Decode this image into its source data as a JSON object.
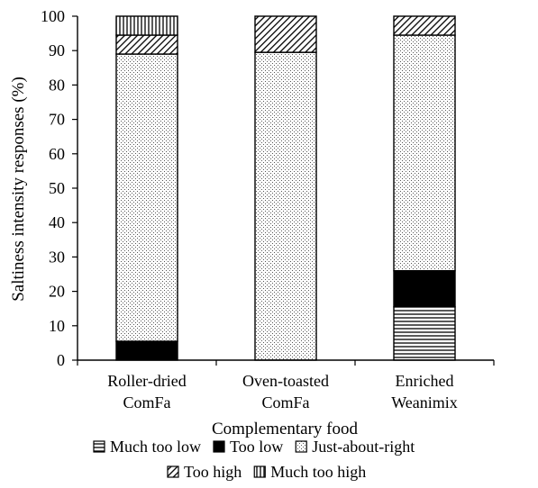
{
  "chart_data": {
    "type": "bar",
    "stacked": true,
    "categories": [
      [
        "Roller-dried",
        "ComFa"
      ],
      [
        "Oven-toasted",
        "ComFa"
      ],
      [
        "Enriched",
        "Weanimix"
      ]
    ],
    "series": [
      {
        "name": "Much too low",
        "pattern": "hlines",
        "values": [
          0,
          0,
          15.5
        ]
      },
      {
        "name": "Too low",
        "pattern": "solid",
        "values": [
          5.5,
          0,
          10.5
        ]
      },
      {
        "name": "Just-about-right",
        "pattern": "dots",
        "values": [
          83.5,
          89.5,
          68.5
        ]
      },
      {
        "name": "Too high",
        "pattern": "diag",
        "values": [
          5.5,
          10.5,
          5.5
        ]
      },
      {
        "name": "Much too high",
        "pattern": "vlines",
        "values": [
          5.5,
          0,
          0
        ]
      }
    ],
    "xlabel": "Complementary food",
    "ylabel": "Saltiness intensity responses (%)",
    "ylim": [
      0,
      100
    ],
    "yticks": [
      0,
      10,
      20,
      30,
      40,
      50,
      60,
      70,
      80,
      90,
      100
    ],
    "grid": false,
    "legend_position": "bottom",
    "colors": {
      "ink": "#000000",
      "background": "#ffffff"
    }
  }
}
